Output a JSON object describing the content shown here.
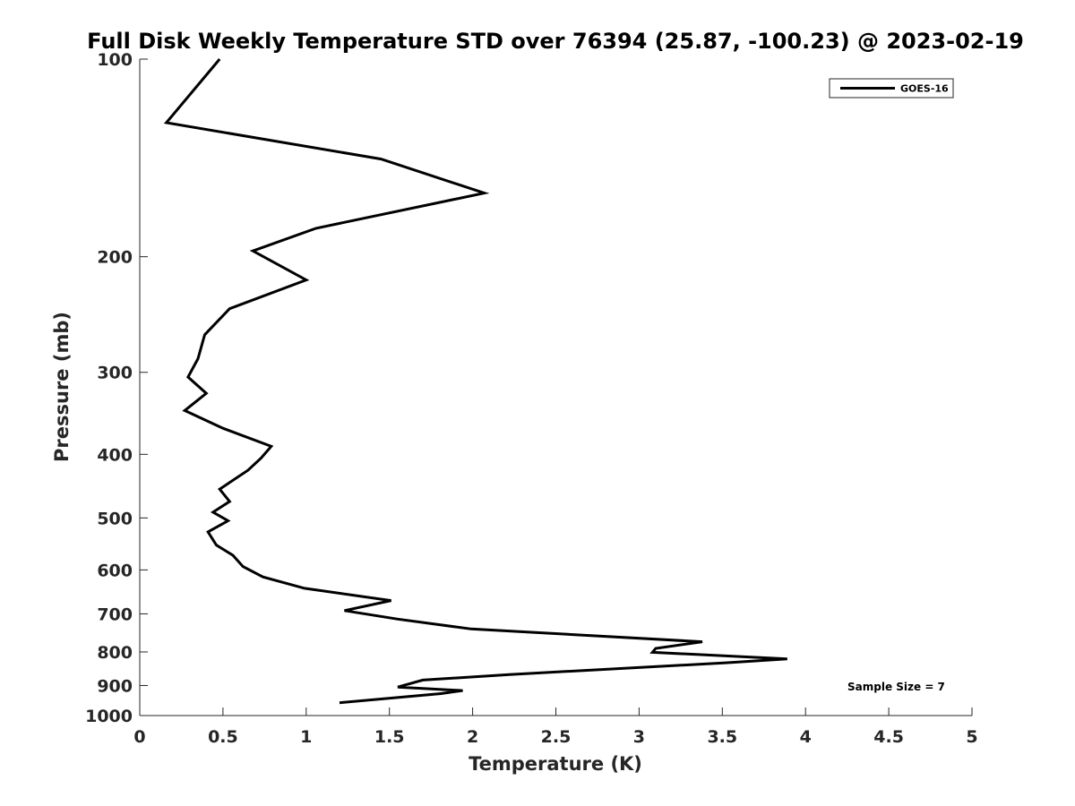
{
  "chart_data": {
    "type": "line",
    "title": "Full Disk Weekly Temperature STD over 76394 (25.87, -100.23) @ 2023-02-19",
    "xlabel": "Temperature (K)",
    "ylabel": "Pressure (mb)",
    "xlim": [
      0,
      5
    ],
    "ylim": [
      100,
      1000
    ],
    "y_scale": "log",
    "y_reversed": true,
    "x_ticks": [
      0,
      0.5,
      1,
      1.5,
      2,
      2.5,
      3,
      3.5,
      4,
      4.5,
      5
    ],
    "x_tick_labels": [
      "0",
      "0.5",
      "1",
      "1.5",
      "2",
      "2.5",
      "3",
      "3.5",
      "4",
      "4.5",
      "5"
    ],
    "y_ticks": [
      100,
      200,
      300,
      400,
      500,
      600,
      700,
      800,
      900,
      1000
    ],
    "y_tick_labels": [
      "100",
      "200",
      "300",
      "400",
      "500",
      "600",
      "700",
      "800",
      "900",
      "1000"
    ],
    "grid": false,
    "legend_position": "top-right",
    "series": [
      {
        "name": "GOES-16",
        "color": "#000000",
        "temperature": [
          0.48,
          0.16,
          1.45,
          2.07,
          1.06,
          0.68,
          1.0,
          0.54,
          0.39,
          0.35,
          0.29,
          0.4,
          0.27,
          0.5,
          0.79,
          0.73,
          0.65,
          0.48,
          0.54,
          0.44,
          0.53,
          0.41,
          0.46,
          0.56,
          0.62,
          0.74,
          0.99,
          1.51,
          1.23,
          1.55,
          1.99,
          3.38,
          3.1,
          3.08,
          3.89,
          3.52,
          2.22,
          1.7,
          1.55,
          1.94,
          1.81,
          1.2
        ],
        "pressure": [
          100,
          125,
          142,
          160,
          181,
          196,
          217,
          240,
          263,
          286,
          305,
          323,
          343,
          365,
          389,
          405,
          423,
          452,
          472,
          490,
          505,
          525,
          550,
          570,
          593,
          615,
          640,
          668,
          692,
          713,
          738,
          772,
          790,
          801,
          820,
          831,
          866,
          883,
          905,
          916,
          926,
          956
        ]
      }
    ],
    "annotation": "Sample Size = 7"
  }
}
